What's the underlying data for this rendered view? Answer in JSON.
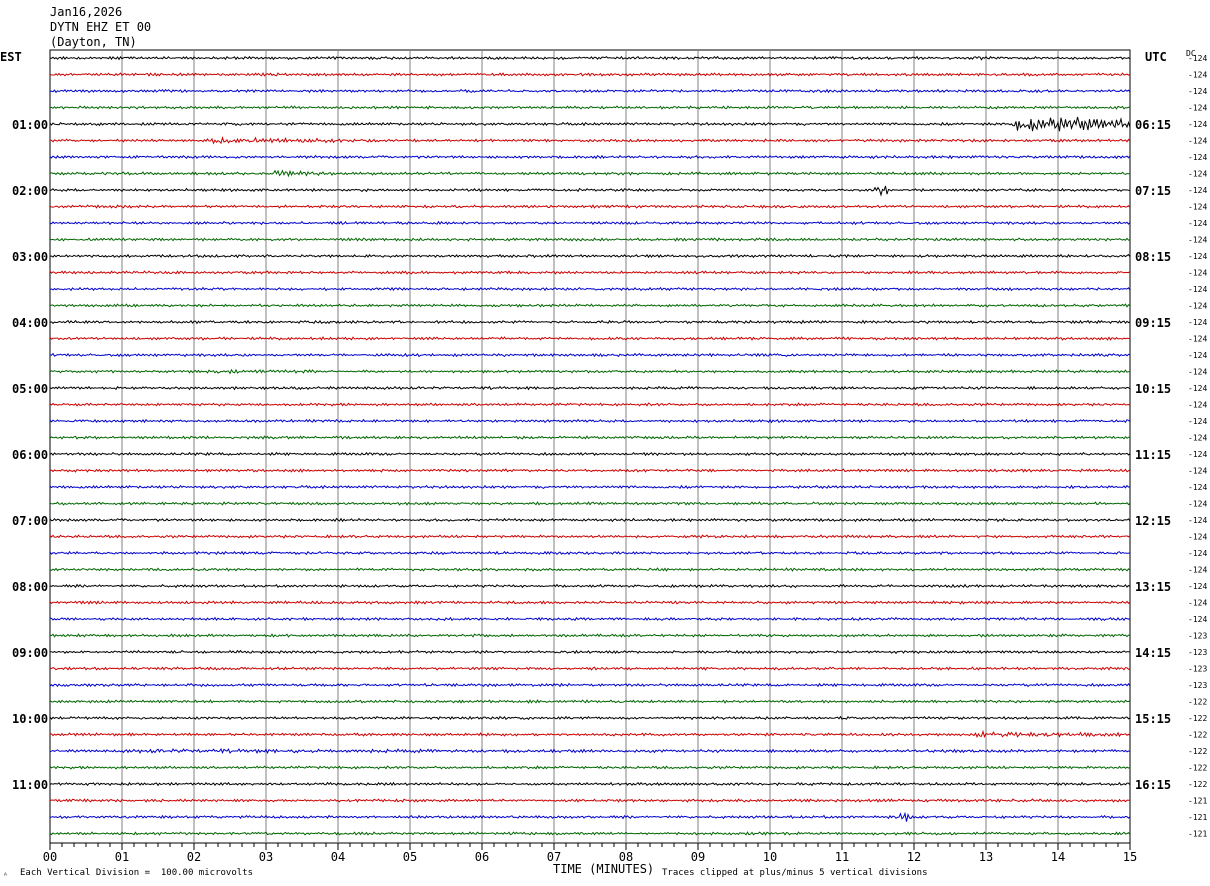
{
  "header": {
    "date": "Jan16,2026",
    "station": "DYTN EHZ ET 00",
    "location": "(Dayton, TN)"
  },
  "left_zone_label": "EST",
  "right_zone_label": "UTC",
  "dc_label": "DC",
  "footer": {
    "scale_note": "Each Vertical Division =  100.00 microvolts",
    "clip_note": "Traces clipped at plus/minus 5 vertical divisions",
    "corner_mark": "ᴬ"
  },
  "colors": {
    "trace_cycle": [
      "#000000",
      "#cc0000",
      "#0000cc",
      "#006600"
    ],
    "grid": "#808080"
  },
  "chart_data": {
    "type": "line",
    "title": "",
    "xlabel": "TIME (MINUTES)",
    "xlim": [
      0,
      15
    ],
    "x_ticks": [
      "00",
      "01",
      "02",
      "03",
      "04",
      "05",
      "06",
      "07",
      "08",
      "09",
      "10",
      "11",
      "12",
      "13",
      "14",
      "15"
    ],
    "est_hour_labels": [
      "01:00",
      "02:00",
      "03:00",
      "04:00",
      "05:00",
      "06:00",
      "07:00",
      "08:00",
      "09:00",
      "10:00",
      "11:00"
    ],
    "utc_hour_labels": [
      "06:15",
      "07:15",
      "08:15",
      "09:15",
      "10:15",
      "11:15",
      "12:15",
      "13:15",
      "14:15",
      "15:15",
      "16:15"
    ],
    "rows_per_hour": 4,
    "first_labeled_row": 4,
    "row_count": 48,
    "dc_offsets": [
      -124,
      -124,
      -124,
      -124,
      -124,
      -124,
      -124,
      -124,
      -124,
      -124,
      -124,
      -124,
      -124,
      -124,
      -124,
      -124,
      -124,
      -124,
      -124,
      -124,
      -124,
      -124,
      -124,
      -124,
      -124,
      -124,
      -124,
      -124,
      -124,
      -124,
      -124,
      -124,
      -124,
      -124,
      -124,
      -123,
      -123,
      -123,
      -123,
      -122,
      -122,
      -122,
      -122,
      -122,
      -122,
      -121,
      -121,
      -121
    ],
    "events": [
      {
        "row": 0,
        "start_min": 12.9,
        "end_min": 13.0,
        "amp": 4
      },
      {
        "row": 4,
        "start_min": 13.3,
        "end_min": 15.0,
        "amp": 9
      },
      {
        "row": 5,
        "start_min": 2.0,
        "end_min": 4.5,
        "amp": 3
      },
      {
        "row": 7,
        "start_min": 3.0,
        "end_min": 4.1,
        "amp": 3
      },
      {
        "row": 8,
        "start_min": 11.4,
        "end_min": 11.7,
        "amp": 7
      },
      {
        "row": 19,
        "start_min": 2.0,
        "end_min": 6.0,
        "amp": 2
      },
      {
        "row": 41,
        "start_min": 12.7,
        "end_min": 15.0,
        "amp": 3
      },
      {
        "row": 42,
        "start_min": 0.0,
        "end_min": 15.0,
        "amp": 2
      },
      {
        "row": 46,
        "start_min": 11.7,
        "end_min": 12.0,
        "amp": 6
      }
    ]
  }
}
